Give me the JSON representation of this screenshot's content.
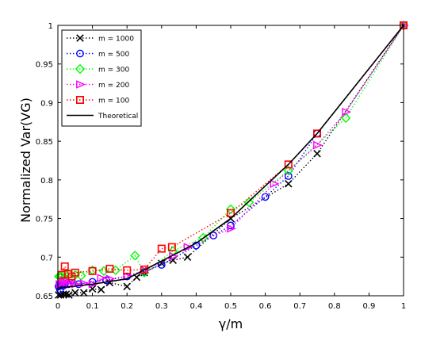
{
  "chart_data": {
    "type": "line",
    "title": "",
    "xlabel": "γ/m",
    "ylabel": "Normalized Var(VG)",
    "xlim": [
      0,
      1
    ],
    "ylim": [
      0.65,
      1
    ],
    "x_ticks": [
      "0",
      "0.1",
      "0.2",
      "0.3",
      "0.4",
      "0.5",
      "0.6",
      "0.7",
      "0.8",
      "0.9",
      "1"
    ],
    "y_ticks": [
      "0.65",
      "0.7",
      "0.75",
      "0.8",
      "0.85",
      "0.9",
      "0.95",
      "1"
    ],
    "grid": false,
    "legend_position": "top-left",
    "series": [
      {
        "name": "m = 1000",
        "color": "#000000",
        "marker": "x",
        "line_style": "dotted",
        "points": [
          [
            0.002,
            0.651
          ],
          [
            0.008,
            0.651
          ],
          [
            0.016,
            0.652
          ],
          [
            0.024,
            0.652
          ],
          [
            0.032,
            0.651
          ],
          [
            0.05,
            0.654
          ],
          [
            0.075,
            0.654
          ],
          [
            0.1,
            0.659
          ],
          [
            0.125,
            0.658
          ],
          [
            0.15,
            0.667
          ],
          [
            0.2,
            0.662
          ],
          [
            0.228,
            0.674
          ],
          [
            0.25,
            0.68
          ],
          [
            0.3,
            0.692
          ],
          [
            0.333,
            0.696
          ],
          [
            0.375,
            0.7
          ],
          [
            0.5,
            0.75
          ],
          [
            0.667,
            0.795
          ],
          [
            0.75,
            0.834
          ],
          [
            1.0,
            1.0
          ]
        ]
      },
      {
        "name": "m = 500",
        "color": "#0000ff",
        "marker": "o",
        "line_style": "dotted",
        "points": [
          [
            0.002,
            0.662
          ],
          [
            0.004,
            0.664
          ],
          [
            0.006,
            0.658
          ],
          [
            0.008,
            0.663
          ],
          [
            0.012,
            0.665
          ],
          [
            0.016,
            0.663
          ],
          [
            0.02,
            0.665
          ],
          [
            0.03,
            0.665
          ],
          [
            0.04,
            0.67
          ],
          [
            0.06,
            0.665
          ],
          [
            0.1,
            0.668
          ],
          [
            0.14,
            0.67
          ],
          [
            0.2,
            0.675
          ],
          [
            0.25,
            0.681
          ],
          [
            0.3,
            0.69
          ],
          [
            0.4,
            0.715
          ],
          [
            0.45,
            0.728
          ],
          [
            0.5,
            0.741
          ],
          [
            0.6,
            0.778
          ],
          [
            0.667,
            0.805
          ],
          [
            0.75,
            0.86
          ],
          [
            1.0,
            1.0
          ]
        ]
      },
      {
        "name": "m = 300",
        "color": "#00ff00",
        "marker": "d",
        "line_style": "dotted",
        "points": [
          [
            0.003,
            0.675
          ],
          [
            0.007,
            0.675
          ],
          [
            0.01,
            0.674
          ],
          [
            0.017,
            0.673
          ],
          [
            0.02,
            0.678
          ],
          [
            0.033,
            0.678
          ],
          [
            0.05,
            0.677
          ],
          [
            0.067,
            0.676
          ],
          [
            0.1,
            0.683
          ],
          [
            0.133,
            0.682
          ],
          [
            0.167,
            0.683
          ],
          [
            0.223,
            0.702
          ],
          [
            0.25,
            0.68
          ],
          [
            0.333,
            0.708
          ],
          [
            0.42,
            0.725
          ],
          [
            0.5,
            0.762
          ],
          [
            0.553,
            0.771
          ],
          [
            0.667,
            0.812
          ],
          [
            0.833,
            0.88
          ],
          [
            1.0,
            1.0
          ]
        ]
      },
      {
        "name": "m = 200",
        "color": "#ff00ff",
        "marker": ">",
        "line_style": "dotted",
        "points": [
          [
            0.005,
            0.665
          ],
          [
            0.01,
            0.666
          ],
          [
            0.015,
            0.668
          ],
          [
            0.02,
            0.67
          ],
          [
            0.025,
            0.667
          ],
          [
            0.035,
            0.665
          ],
          [
            0.05,
            0.665
          ],
          [
            0.075,
            0.666
          ],
          [
            0.1,
            0.665
          ],
          [
            0.125,
            0.673
          ],
          [
            0.15,
            0.672
          ],
          [
            0.2,
            0.675
          ],
          [
            0.25,
            0.683
          ],
          [
            0.333,
            0.701
          ],
          [
            0.375,
            0.713
          ],
          [
            0.5,
            0.737
          ],
          [
            0.625,
            0.795
          ],
          [
            0.75,
            0.845
          ],
          [
            0.833,
            0.888
          ],
          [
            1.0,
            1.0
          ]
        ]
      },
      {
        "name": "m = 100",
        "color": "#ff0000",
        "marker": "s",
        "line_style": "dotted",
        "points": [
          [
            0.01,
            0.677
          ],
          [
            0.02,
            0.688
          ],
          [
            0.03,
            0.678
          ],
          [
            0.04,
            0.675
          ],
          [
            0.05,
            0.68
          ],
          [
            0.1,
            0.682
          ],
          [
            0.15,
            0.685
          ],
          [
            0.2,
            0.683
          ],
          [
            0.25,
            0.684
          ],
          [
            0.3,
            0.711
          ],
          [
            0.33,
            0.713
          ],
          [
            0.5,
            0.757
          ],
          [
            0.667,
            0.82
          ],
          [
            0.75,
            0.86
          ],
          [
            1.0,
            1.0
          ]
        ]
      },
      {
        "name": "Theoretical",
        "color": "#000000",
        "marker": "none",
        "line_style": "solid",
        "points": [
          [
            0.0,
            0.66
          ],
          [
            0.1,
            0.665
          ],
          [
            0.2,
            0.672
          ],
          [
            0.3,
            0.695
          ],
          [
            0.4,
            0.718
          ],
          [
            0.5,
            0.75
          ],
          [
            0.571,
            0.78
          ],
          [
            0.667,
            0.82
          ],
          [
            0.75,
            0.86
          ],
          [
            1.0,
            1.0
          ]
        ]
      }
    ]
  }
}
